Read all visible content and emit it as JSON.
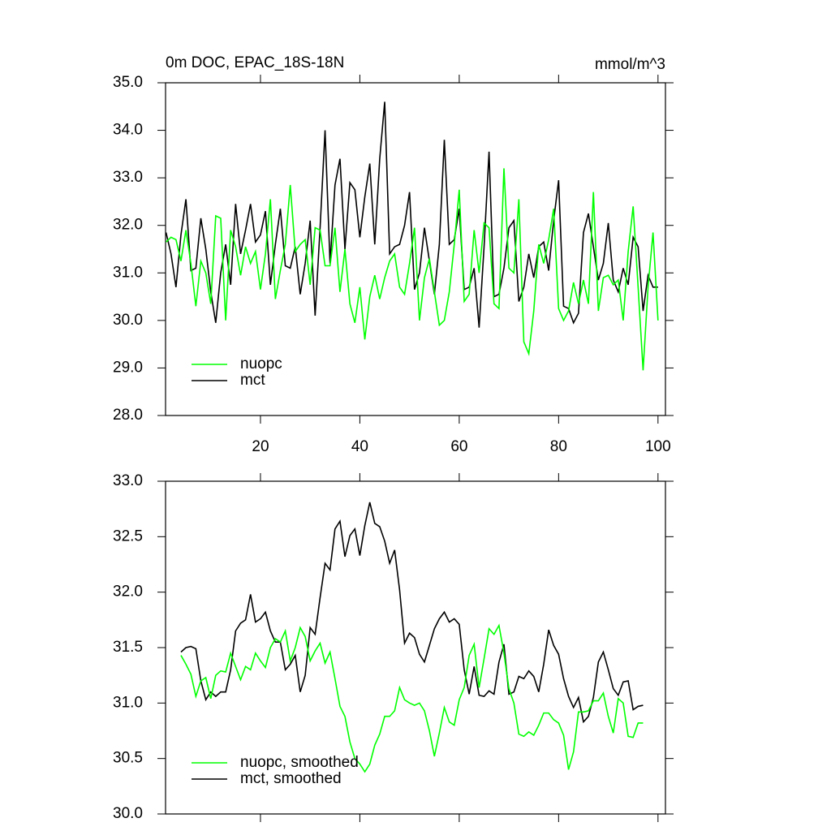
{
  "chart_data": [
    {
      "type": "line",
      "title": "0m DOC, EPAC_18S-18N",
      "units": "mmol/m^3",
      "x": [
        1,
        2,
        3,
        4,
        5,
        6,
        7,
        8,
        9,
        10,
        11,
        12,
        13,
        14,
        15,
        16,
        17,
        18,
        19,
        20,
        21,
        22,
        23,
        24,
        25,
        26,
        27,
        28,
        29,
        30,
        31,
        32,
        33,
        34,
        35,
        36,
        37,
        38,
        39,
        40,
        41,
        42,
        43,
        44,
        45,
        46,
        47,
        48,
        49,
        50,
        51,
        52,
        53,
        54,
        55,
        56,
        57,
        58,
        59,
        60,
        61,
        62,
        63,
        64,
        65,
        66,
        67,
        68,
        69,
        70,
        71,
        72,
        73,
        74,
        75,
        76,
        77,
        78,
        79,
        80,
        81,
        82,
        83,
        84,
        85,
        86,
        87,
        88,
        89,
        90,
        91,
        92,
        93,
        94,
        95,
        96,
        97,
        98,
        99,
        100
      ],
      "series": [
        {
          "name": "mct",
          "color": "#000000",
          "values": [
            31.85,
            31.4,
            30.7,
            31.8,
            32.55,
            31.05,
            31.1,
            32.15,
            31.5,
            30.6,
            29.95,
            31.0,
            31.6,
            30.75,
            32.45,
            31.4,
            31.9,
            32.45,
            31.65,
            31.8,
            32.3,
            30.75,
            31.6,
            32.35,
            31.15,
            31.1,
            31.55,
            30.55,
            31.2,
            32.1,
            30.1,
            31.95,
            34.0,
            31.2,
            32.85,
            33.4,
            31.5,
            32.9,
            32.75,
            31.75,
            32.6,
            33.3,
            31.6,
            33.4,
            34.6,
            31.4,
            31.55,
            31.6,
            32.0,
            32.7,
            30.65,
            31.0,
            31.95,
            31.25,
            30.55,
            31.6,
            33.8,
            31.6,
            31.7,
            32.35,
            30.65,
            30.7,
            31.1,
            29.85,
            31.55,
            33.55,
            30.5,
            30.55,
            31.1,
            31.95,
            32.1,
            30.4,
            30.7,
            31.4,
            30.9,
            31.55,
            31.65,
            31.05,
            32.1,
            32.95,
            30.3,
            30.25,
            29.95,
            30.15,
            31.85,
            32.25,
            31.55,
            30.85,
            31.2,
            32.05,
            30.85,
            30.6,
            31.1,
            30.75,
            31.75,
            31.55,
            30.2,
            30.95,
            30.7,
            30.7
          ]
        },
        {
          "name": "nuopc",
          "color": "#00ff00",
          "values": [
            31.65,
            31.75,
            31.7,
            31.25,
            31.9,
            31.2,
            30.3,
            31.25,
            31.0,
            30.35,
            32.2,
            32.15,
            30.0,
            31.9,
            31.55,
            30.95,
            31.55,
            31.2,
            31.45,
            30.65,
            31.4,
            32.55,
            30.45,
            31.05,
            31.6,
            32.85,
            31.45,
            31.6,
            31.7,
            30.75,
            31.95,
            31.9,
            31.15,
            31.15,
            31.95,
            30.6,
            31.5,
            30.35,
            29.95,
            30.7,
            29.6,
            30.5,
            30.95,
            30.45,
            30.9,
            31.25,
            31.4,
            30.7,
            30.55,
            31.2,
            31.95,
            30.0,
            30.9,
            31.3,
            30.6,
            29.9,
            30.0,
            30.6,
            31.6,
            32.75,
            30.4,
            30.55,
            31.9,
            31.0,
            32.05,
            31.95,
            30.35,
            30.25,
            33.2,
            31.1,
            31.0,
            32.55,
            29.55,
            29.3,
            30.2,
            31.6,
            31.2,
            31.7,
            32.35,
            30.25,
            30.0,
            30.2,
            30.8,
            30.35,
            30.85,
            30.35,
            32.7,
            30.2,
            30.9,
            30.95,
            30.75,
            30.85,
            30.0,
            31.45,
            32.4,
            30.7,
            28.95,
            30.7,
            31.85,
            30.0
          ]
        }
      ],
      "xlim": [
        0.9,
        101.5
      ],
      "xticks": [
        20,
        40,
        60,
        80,
        100
      ],
      "show_xtick_labels": true,
      "ylim": [
        28,
        35
      ],
      "yticks": [
        {
          "value": 28,
          "label": "28.0"
        },
        {
          "value": 29,
          "label": "29.0"
        },
        {
          "value": 30,
          "label": "30.0"
        },
        {
          "value": 31,
          "label": "31.0"
        },
        {
          "value": 32,
          "label": "32.0"
        },
        {
          "value": 33,
          "label": "33.0"
        },
        {
          "value": 34,
          "label": "34.0"
        },
        {
          "value": 35,
          "label": "35.0"
        }
      ],
      "legend": "lower left"
    },
    {
      "type": "line",
      "x": [
        4,
        5,
        6,
        7,
        8,
        9,
        10,
        11,
        12,
        13,
        14,
        15,
        16,
        17,
        18,
        19,
        20,
        21,
        22,
        23,
        24,
        25,
        26,
        27,
        28,
        29,
        30,
        31,
        32,
        33,
        34,
        35,
        36,
        37,
        38,
        39,
        40,
        41,
        42,
        43,
        44,
        45,
        46,
        47,
        48,
        49,
        50,
        51,
        52,
        53,
        54,
        55,
        56,
        57,
        58,
        59,
        60,
        61,
        62,
        63,
        64,
        65,
        66,
        67,
        68,
        69,
        70,
        71,
        72,
        73,
        74,
        75,
        76,
        77,
        78,
        79,
        80,
        81,
        82,
        83,
        84,
        85,
        86,
        87,
        88,
        89,
        90,
        91,
        92,
        93,
        94,
        95,
        96,
        97
      ],
      "series": [
        {
          "name": "mct, smoothed",
          "color": "#000000",
          "values": [
            31.46,
            31.5,
            31.51,
            31.49,
            31.2,
            31.03,
            31.1,
            31.06,
            31.1,
            31.1,
            31.3,
            31.65,
            31.72,
            31.75,
            31.98,
            31.73,
            31.76,
            31.82,
            31.65,
            31.55,
            31.55,
            31.3,
            31.35,
            31.43,
            31.1,
            31.25,
            31.68,
            31.62,
            31.95,
            32.26,
            32.2,
            32.57,
            32.64,
            32.32,
            32.51,
            32.57,
            32.33,
            32.6,
            32.81,
            32.62,
            32.59,
            32.46,
            32.26,
            32.38,
            32.02,
            31.54,
            31.63,
            31.59,
            31.44,
            31.37,
            31.52,
            31.67,
            31.76,
            31.82,
            31.73,
            31.76,
            31.71,
            31.3,
            31.08,
            31.33,
            31.07,
            31.06,
            31.11,
            31.08,
            31.37,
            31.53,
            31.08,
            31.1,
            31.24,
            31.22,
            31.29,
            31.24,
            31.1,
            31.35,
            31.66,
            31.52,
            31.44,
            31.22,
            31.06,
            30.96,
            31.05,
            30.83,
            30.88,
            31.05,
            31.37,
            31.46,
            31.3,
            31.13,
            31.07,
            31.19,
            31.2,
            30.94,
            30.97,
            30.98
          ]
        },
        {
          "name": "nuopc, smoothed",
          "color": "#00ff00",
          "values": [
            31.43,
            31.35,
            31.26,
            31.06,
            31.2,
            31.23,
            31.04,
            31.25,
            31.29,
            31.28,
            31.45,
            31.33,
            31.21,
            31.33,
            31.3,
            31.45,
            31.38,
            31.32,
            31.5,
            31.58,
            31.55,
            31.65,
            31.38,
            31.5,
            31.68,
            31.6,
            31.38,
            31.47,
            31.54,
            31.36,
            31.46,
            31.22,
            30.97,
            30.88,
            30.65,
            30.5,
            30.45,
            30.38,
            30.45,
            30.62,
            30.72,
            30.88,
            30.88,
            30.93,
            31.14,
            31.03,
            31.0,
            30.98,
            31.0,
            30.93,
            30.75,
            30.52,
            30.73,
            30.96,
            30.83,
            30.8,
            31.03,
            31.14,
            31.43,
            31.53,
            31.14,
            31.4,
            31.67,
            31.62,
            31.7,
            31.45,
            31.13,
            31.0,
            30.72,
            30.7,
            30.74,
            30.71,
            30.8,
            30.91,
            30.91,
            30.85,
            30.82,
            30.71,
            30.4,
            30.56,
            30.92,
            30.92,
            30.93,
            31.02,
            31.02,
            31.09,
            30.88,
            30.73,
            31.04,
            31.0,
            30.7,
            30.69,
            30.82,
            30.82
          ]
        }
      ],
      "xlim": [
        0.9,
        101.5
      ],
      "xticks": [
        20,
        40,
        60,
        80,
        100
      ],
      "show_xtick_labels": false,
      "ylim": [
        30,
        33
      ],
      "yticks": [
        {
          "value": 30,
          "label": "30.0"
        },
        30.5,
        {
          "value": 31,
          "label": "31.0"
        },
        31.5,
        {
          "value": 32,
          "label": "32.0"
        },
        32.5,
        {
          "value": 33,
          "label": "33.0"
        }
      ],
      "legend": "lower left"
    }
  ]
}
